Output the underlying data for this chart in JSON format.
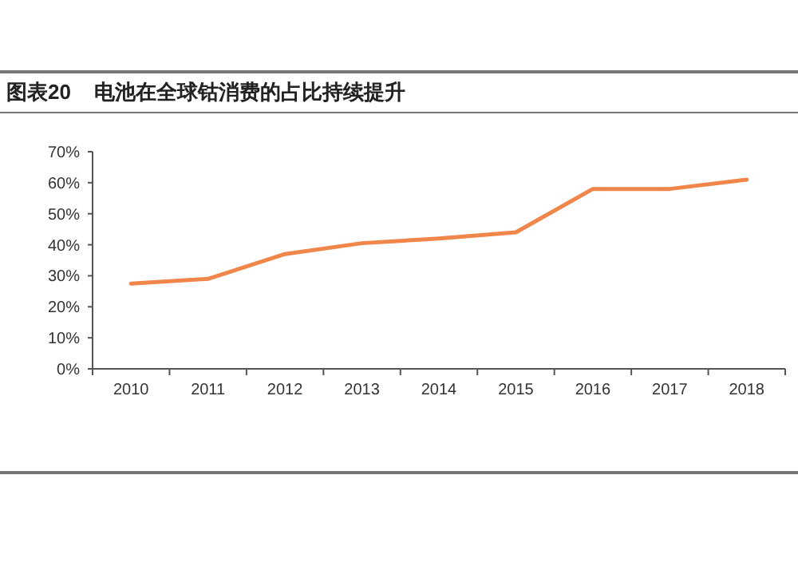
{
  "chart_data": {
    "type": "line",
    "title": "图表20    电池在全球钴消费的占比持续提升",
    "categories": [
      "2010",
      "2011",
      "2012",
      "2013",
      "2014",
      "2015",
      "2016",
      "2017",
      "2018"
    ],
    "values": [
      27.5,
      29,
      37,
      40.5,
      42,
      44,
      58,
      58,
      61
    ],
    "color": "#f0864a",
    "ylim": [
      0,
      70
    ],
    "yticks": [
      {
        "value": 0,
        "label": "0%"
      },
      {
        "value": 10,
        "label": "10%"
      },
      {
        "value": 20,
        "label": "20%"
      },
      {
        "value": 30,
        "label": "30%"
      },
      {
        "value": 40,
        "label": "40%"
      },
      {
        "value": 50,
        "label": "50%"
      },
      {
        "value": 60,
        "label": "60%"
      },
      {
        "value": 70,
        "label": "70%"
      }
    ]
  }
}
